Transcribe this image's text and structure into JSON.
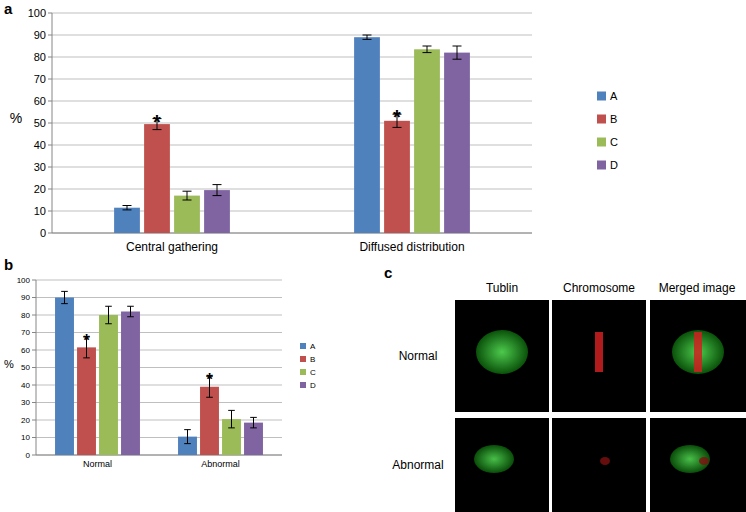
{
  "chart_data": [
    {
      "type": "bar",
      "y_label": "%",
      "categories": [
        "Central gathering",
        "Diffused distribution"
      ],
      "ylim": [
        0,
        100
      ],
      "yticks": [
        0,
        10,
        20,
        30,
        40,
        50,
        60,
        70,
        80,
        90,
        100
      ],
      "grid": true,
      "legend": "right",
      "series": [
        {
          "name": "A",
          "color": "#4f81bd",
          "values": [
            11.5,
            89
          ],
          "errors": [
            1,
            1
          ]
        },
        {
          "name": "B",
          "color": "#c0504d",
          "values": [
            49.5,
            51
          ],
          "errors": [
            2.5,
            3
          ]
        },
        {
          "name": "C",
          "color": "#9bbb59",
          "values": [
            17,
            83.5
          ],
          "errors": [
            2,
            1.5
          ]
        },
        {
          "name": "D",
          "color": "#8064a2",
          "values": [
            19.5,
            82
          ],
          "errors": [
            2.5,
            3
          ]
        }
      ],
      "annotations": [
        {
          "text": "*",
          "series": "B",
          "category": "Central gathering"
        },
        {
          "text": "*",
          "series": "B",
          "category": "Diffused distribution"
        }
      ]
    },
    {
      "type": "bar",
      "y_label": "%",
      "categories": [
        "Normal",
        "Abnormal"
      ],
      "ylim": [
        0,
        100
      ],
      "yticks": [
        0,
        10,
        20,
        30,
        40,
        50,
        60,
        70,
        80,
        90,
        100
      ],
      "grid": true,
      "legend": "right",
      "series": [
        {
          "name": "A",
          "color": "#4f81bd",
          "values": [
            90,
            10.5
          ],
          "errors": [
            3.5,
            4
          ]
        },
        {
          "name": "B",
          "color": "#c0504d",
          "values": [
            61.5,
            39
          ],
          "errors": [
            6,
            6
          ]
        },
        {
          "name": "C",
          "color": "#9bbb59",
          "values": [
            80,
            20.5
          ],
          "errors": [
            5,
            5
          ]
        },
        {
          "name": "D",
          "color": "#8064a2",
          "values": [
            82,
            18.5
          ],
          "errors": [
            3,
            3
          ]
        }
      ],
      "annotations": [
        {
          "text": "*",
          "series": "B",
          "category": "Normal"
        },
        {
          "text": "*",
          "series": "B",
          "category": "Abnormal"
        }
      ]
    }
  ],
  "panel_labels": [
    "a",
    "b",
    "c"
  ],
  "image_panel": {
    "columns": [
      "Tublin",
      "Chromosome",
      "Merged image"
    ],
    "rows": [
      "Normal",
      "Abnormal"
    ]
  }
}
